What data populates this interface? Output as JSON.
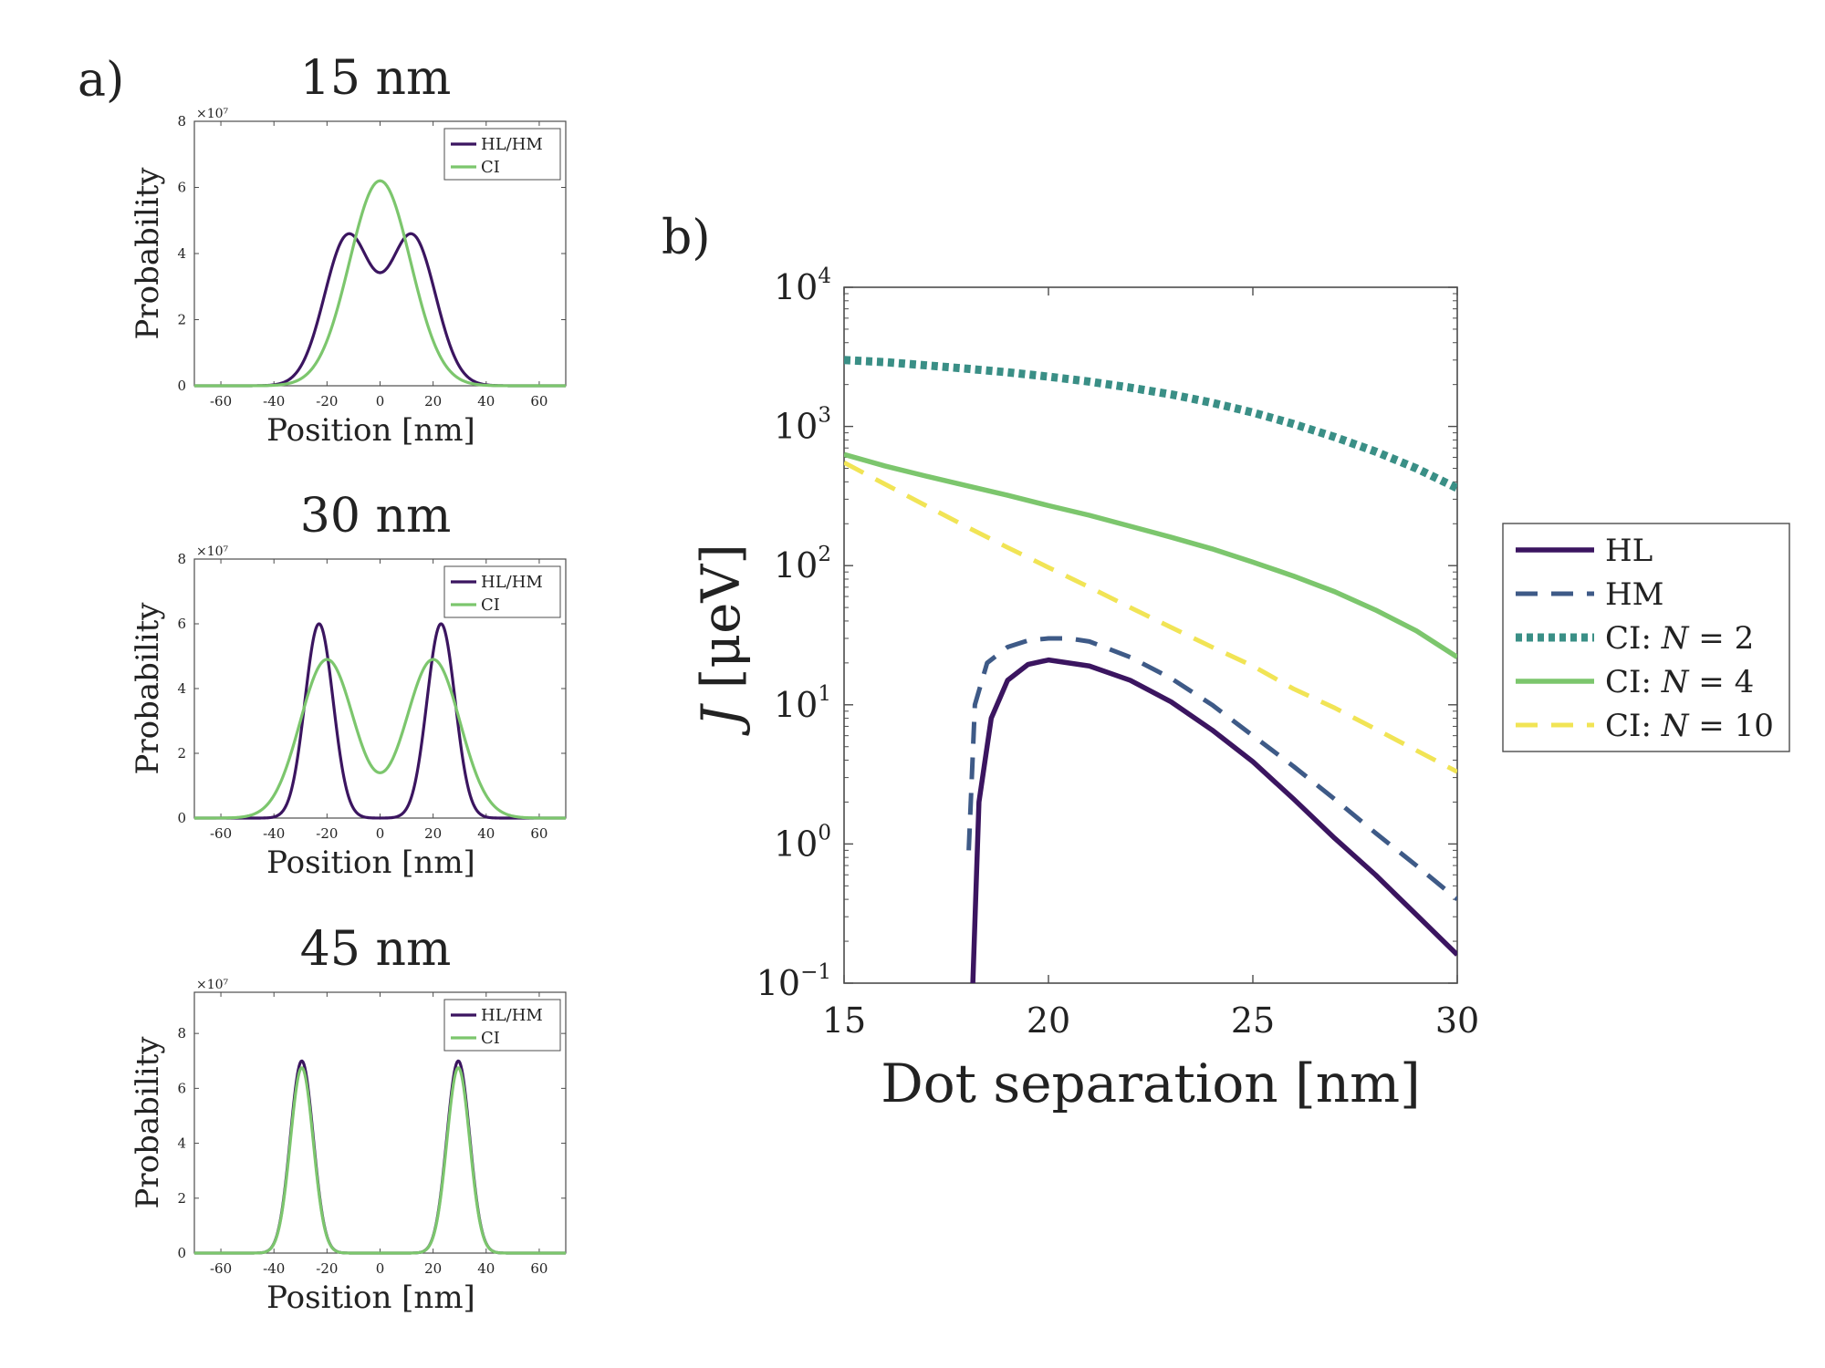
{
  "panel_a_label": "a)",
  "panel_b_label": "b)",
  "colors": {
    "HL": "#3b1560",
    "HM": "#3e5a87",
    "CI_N2": "#3a8f86",
    "CI_N4": "#7cc66d",
    "CI_N10": "#f1e455",
    "axis": "#4d4d4d"
  },
  "chart_data": [
    {
      "id": "a1",
      "type": "line",
      "title": "15 nm",
      "xlabel": "Position [nm]",
      "ylabel": "Probability",
      "scale_label": "×10⁷",
      "xlim": [
        -70,
        70
      ],
      "ylim": [
        0,
        8
      ],
      "xticks": [
        -60,
        -40,
        -20,
        0,
        20,
        40,
        60
      ],
      "yticks": [
        0,
        2,
        4,
        6,
        8
      ],
      "legend": [
        "HL/HM",
        "CI"
      ],
      "curves": {
        "HL_HM": {
          "peak_positions": [
            -12.2,
            12.2
          ],
          "peak_height": 4.6,
          "center_value": 3.5
        },
        "CI": {
          "peak_positions": [
            0
          ],
          "peak_height": 6.2
        }
      }
    },
    {
      "id": "a2",
      "type": "line",
      "title": "30 nm",
      "xlabel": "Position [nm]",
      "ylabel": "Probability",
      "scale_label": "×10⁷",
      "xlim": [
        -70,
        70
      ],
      "ylim": [
        0,
        8
      ],
      "xticks": [
        -60,
        -40,
        -20,
        0,
        20,
        40,
        60
      ],
      "yticks": [
        0,
        2,
        4,
        6,
        8
      ],
      "legend": [
        "HL/HM",
        "CI"
      ],
      "curves": {
        "HL_HM": {
          "peak_positions": [
            -23,
            23
          ],
          "peak_height": 6.0,
          "center_value": 0.0
        },
        "CI": {
          "peak_positions": [
            -20,
            20
          ],
          "peak_height": 4.9,
          "center_value": 1.4
        }
      }
    },
    {
      "id": "a3",
      "type": "line",
      "title": "45 nm",
      "xlabel": "Position [nm]",
      "ylabel": "Probability",
      "scale_label": "×10⁷",
      "xlim": [
        -70,
        70
      ],
      "ylim": [
        0,
        9.5
      ],
      "xticks": [
        -60,
        -40,
        -20,
        0,
        20,
        40,
        60
      ],
      "yticks": [
        0,
        2,
        4,
        6,
        8
      ],
      "legend": [
        "HL/HM",
        "CI"
      ],
      "curves": {
        "HL_HM": {
          "peak_positions": [
            -29.5,
            29.5
          ],
          "peak_height": 7.0,
          "center_value": 0.0
        },
        "CI": {
          "peak_positions": [
            -29.5,
            29.5
          ],
          "peak_height": 6.75,
          "center_value": 0.0
        }
      }
    },
    {
      "id": "b",
      "type": "line",
      "yscale": "log",
      "xlabel": "Dot separation [nm]",
      "ylabel_main": "J",
      "ylabel_unit": "[μeV]",
      "xlim": [
        15,
        30
      ],
      "ylim": [
        0.1,
        10000
      ],
      "xticks": [
        15,
        20,
        25,
        30
      ],
      "ytick_exponents": [
        -1,
        0,
        1,
        2,
        3,
        4
      ],
      "ytick_base": "10",
      "series": [
        {
          "key": "HL",
          "name": "HL",
          "style": "solid",
          "x": [
            18.15,
            18.3,
            18.6,
            19.0,
            19.5,
            20.0,
            21.0,
            22.0,
            23.0,
            24.0,
            25.0,
            26.0,
            27.0,
            28.0,
            29.0,
            30.0
          ],
          "y": [
            0.1,
            2.0,
            8.0,
            15.0,
            19.5,
            21.0,
            19.0,
            15.0,
            10.5,
            6.6,
            3.9,
            2.1,
            1.1,
            0.6,
            0.31,
            0.16
          ]
        },
        {
          "key": "HM",
          "name": "HM",
          "style": "dash",
          "x": [
            18.05,
            18.2,
            18.5,
            19.0,
            19.5,
            20.0,
            20.5,
            21.0,
            22.0,
            23.0,
            24.0,
            25.0,
            26.0,
            27.0,
            28.0,
            29.0,
            30.0
          ],
          "y": [
            0.9,
            10.0,
            20.0,
            26.0,
            29.0,
            30.0,
            30.0,
            28.5,
            22.0,
            15.5,
            10.0,
            6.0,
            3.6,
            2.1,
            1.2,
            0.7,
            0.4
          ]
        },
        {
          "key": "CI_N2",
          "name": "CI: N = 2",
          "label_prefix": "CI: ",
          "label_var": "N",
          "label_value": " = 2",
          "style": "dot",
          "x": [
            15,
            16,
            17,
            18,
            19,
            20,
            21,
            22,
            23,
            24,
            25,
            26,
            27,
            28,
            29,
            30
          ],
          "y": [
            3000,
            2900,
            2750,
            2600,
            2450,
            2280,
            2100,
            1900,
            1700,
            1480,
            1260,
            1040,
            840,
            660,
            500,
            360
          ]
        },
        {
          "key": "CI_N4",
          "name": "CI: N = 4",
          "label_prefix": "CI: ",
          "label_var": "N",
          "label_value": " = 4",
          "style": "solid",
          "x": [
            15,
            16,
            17,
            18,
            19,
            20,
            21,
            22,
            23,
            24,
            25,
            26,
            27,
            28,
            29,
            30
          ],
          "y": [
            630,
            520,
            440,
            375,
            320,
            270,
            230,
            192,
            160,
            132,
            106,
            84,
            65,
            48,
            34,
            22
          ]
        },
        {
          "key": "CI_N10",
          "name": "CI: N = 10",
          "label_prefix": "CI: ",
          "label_var": "N",
          "label_value": " = 10",
          "style": "dash",
          "x": [
            15,
            16,
            17,
            18,
            19,
            20,
            21,
            22,
            23,
            24,
            25,
            26,
            27,
            28,
            29,
            30
          ],
          "y": [
            550,
            385,
            270,
            190,
            135,
            97,
            70,
            50,
            36,
            26,
            19,
            13,
            9.5,
            6.7,
            4.7,
            3.3
          ]
        }
      ]
    }
  ]
}
